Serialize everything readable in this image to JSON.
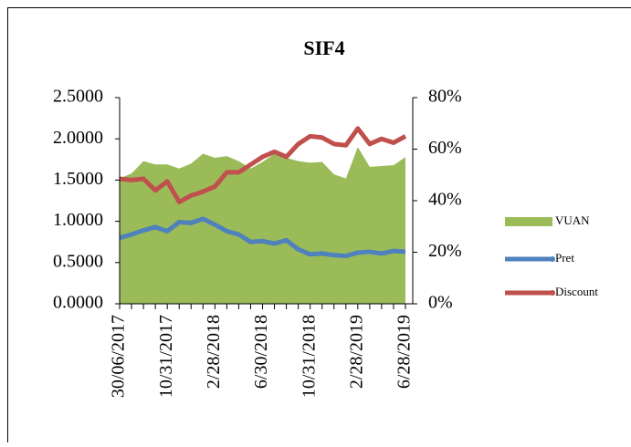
{
  "chart_data": {
    "type": "area-line",
    "title": "SIF4",
    "categories": [
      "30/06/2017",
      null,
      null,
      null,
      "10/31/2017",
      null,
      null,
      null,
      "2/28/2018",
      null,
      null,
      null,
      "6/30/2018",
      null,
      null,
      null,
      "10/31/2018",
      null,
      null,
      null,
      "2/28/2019",
      null,
      null,
      null,
      "6/28/2019"
    ],
    "series": [
      {
        "name": "VUAN",
        "color": "#9bbb59",
        "kind": "area",
        "values": [
          1.52,
          1.58,
          1.73,
          1.69,
          1.69,
          1.64,
          1.7,
          1.82,
          1.77,
          1.79,
          1.73,
          1.64,
          1.72,
          1.82,
          1.77,
          1.73,
          1.71,
          1.72,
          1.57,
          1.52,
          1.9,
          1.66,
          1.67,
          1.68,
          1.78
        ]
      },
      {
        "name": "Pret",
        "color": "#4f81bd",
        "kind": "line",
        "values": [
          0.8,
          0.84,
          0.89,
          0.93,
          0.88,
          0.99,
          0.98,
          1.03,
          0.96,
          0.88,
          0.84,
          0.75,
          0.76,
          0.73,
          0.77,
          0.66,
          0.6,
          0.61,
          0.59,
          0.58,
          0.62,
          0.63,
          0.61,
          0.64,
          0.63
        ]
      },
      {
        "name": "Discount",
        "color": "#c0504d",
        "kind": "line",
        "axis": "y2",
        "values": [
          48.5,
          48,
          48.5,
          44,
          47.5,
          39.5,
          42,
          43.5,
          45.5,
          51,
          51,
          54,
          57,
          59,
          57,
          62,
          65,
          64.5,
          62,
          61.5,
          68,
          62,
          64,
          62.5,
          65
        ]
      }
    ],
    "ylim": [
      0,
      2.5
    ],
    "yticks": [
      {
        "value": 0,
        "label": "0.0000"
      },
      {
        "value": 0.5,
        "label": "0.5000"
      },
      {
        "value": 1,
        "label": "1.0000"
      },
      {
        "value": 1.5,
        "label": "1.5000"
      },
      {
        "value": 2,
        "label": "2.0000"
      },
      {
        "value": 2.5,
        "label": "2.5000"
      }
    ],
    "y2lim": [
      0,
      80
    ],
    "y2ticks": [
      {
        "value": 0,
        "label": "0%"
      },
      {
        "value": 20,
        "label": "20%"
      },
      {
        "value": 40,
        "label": "40%"
      },
      {
        "value": 60,
        "label": "60%"
      },
      {
        "value": 80,
        "label": "80%"
      }
    ],
    "legend": "right"
  }
}
